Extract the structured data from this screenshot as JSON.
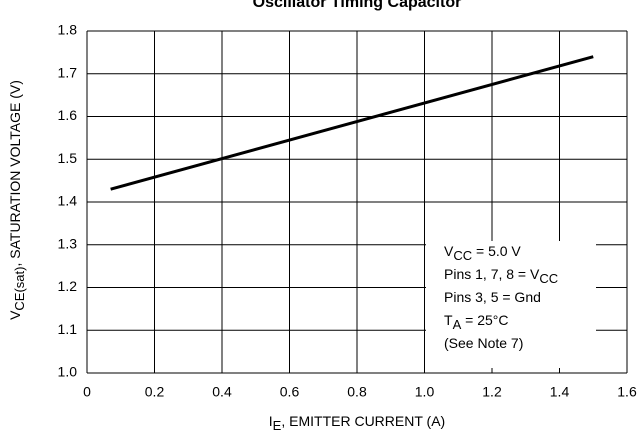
{
  "chart_data": {
    "type": "line",
    "title": "Oscillator Timing Capacitor",
    "xlabel": [
      {
        "text": "I"
      },
      {
        "text": "E",
        "sub": true
      },
      {
        "text": ", EMITTER CURRENT (A)"
      }
    ],
    "ylabel": [
      {
        "text": "V"
      },
      {
        "text": "CE(sat)",
        "sub": true
      },
      {
        "text": ", SATURATION VOLTAGE (V)"
      }
    ],
    "x": [
      0.07,
      1.5
    ],
    "series": [
      {
        "color": "#000000",
        "values": [
          1.43,
          1.74
        ]
      }
    ],
    "xlim": [
      0,
      1.6
    ],
    "ylim": [
      1.0,
      1.8
    ],
    "xticks": [
      0,
      0.2,
      0.4,
      0.6,
      0.8,
      {
        "value": 1,
        "label": "1.0"
      },
      1.2,
      1.4,
      1.6
    ],
    "yticks": [
      {
        "value": 1,
        "label": "1.0"
      },
      1.1,
      1.2,
      1.3,
      1.4,
      1.5,
      1.6,
      1.7,
      1.8
    ],
    "grid": true,
    "annotations": [
      [
        {
          "text": "V"
        },
        {
          "text": "CC",
          "sub": true
        },
        {
          "text": " = 5.0 V"
        }
      ],
      [
        {
          "text": "Pins 1, 7, 8 = V"
        },
        {
          "text": "CC",
          "sub": true
        }
      ],
      [
        {
          "text": "Pins 3, 5 = Gnd"
        }
      ],
      [
        {
          "text": "T"
        },
        {
          "text": "A",
          "sub": true
        },
        {
          "text": " = 25°C"
        }
      ],
      [
        {
          "text": "(See Note 7)"
        }
      ]
    ]
  }
}
